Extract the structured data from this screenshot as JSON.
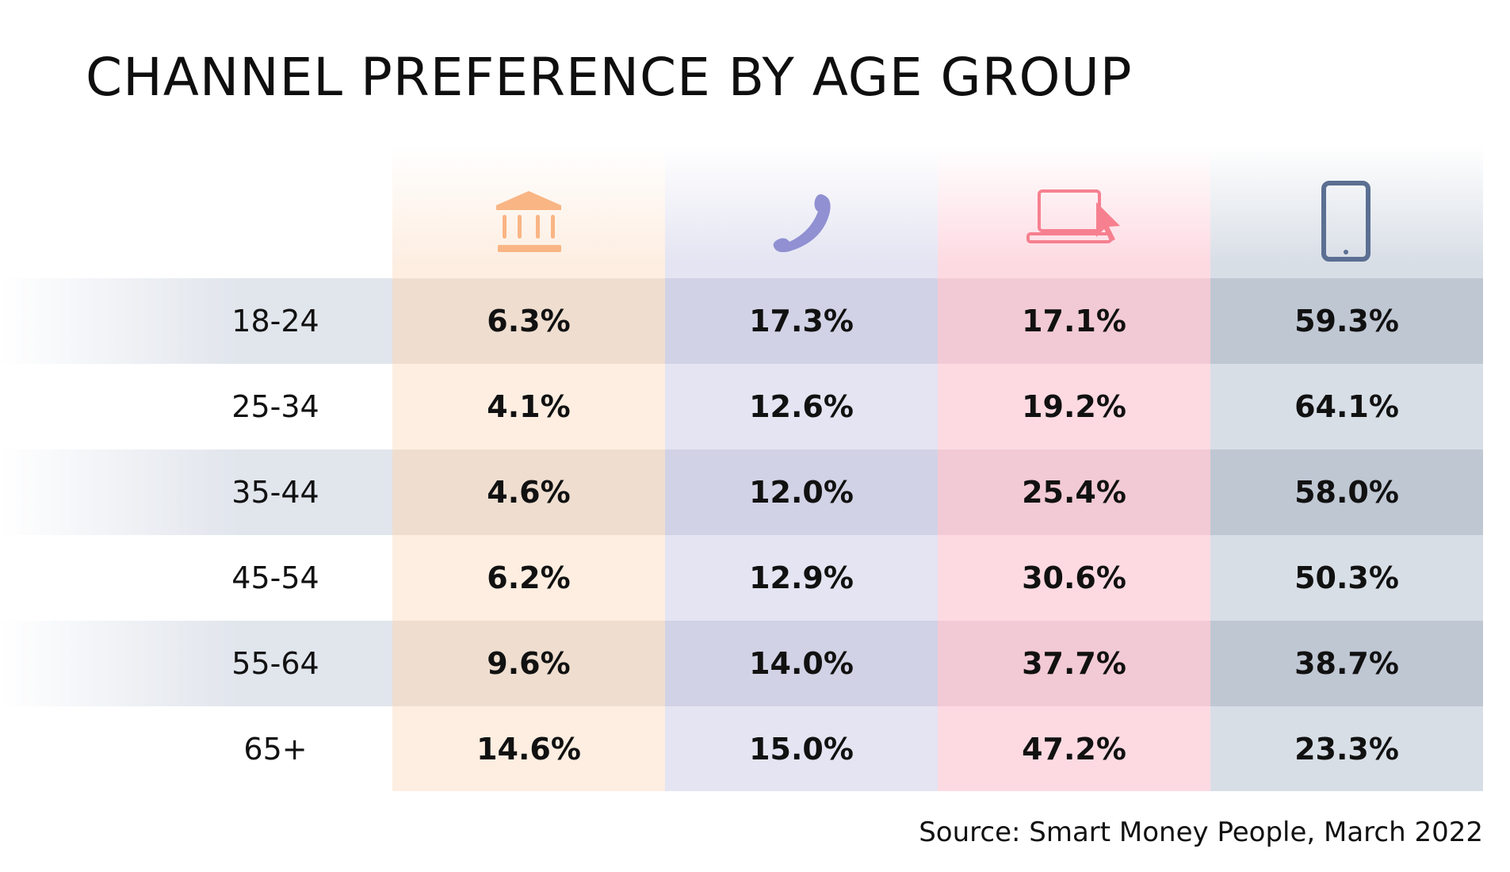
{
  "title": "CHANNEL PREFERENCE BY AGE GROUP",
  "source": "Source: Smart Money People, March 2022",
  "channels": [
    {
      "icon": "bank-icon",
      "color": "#f9b584"
    },
    {
      "icon": "phone-icon",
      "color": "#9090d2"
    },
    {
      "icon": "laptop-cursor-icon",
      "color": "#f6808f"
    },
    {
      "icon": "mobile-icon",
      "color": "#5b6f92"
    }
  ],
  "chart_data": {
    "type": "table",
    "columns": [
      "bank",
      "phone",
      "laptop",
      "mobile"
    ],
    "rows": [
      {
        "label": "18-24",
        "values": [
          "6.3%",
          "17.3%",
          "17.1%",
          "59.3%"
        ]
      },
      {
        "label": "25-34",
        "values": [
          "4.1%",
          "12.6%",
          "19.2%",
          "64.1%"
        ]
      },
      {
        "label": "35-44",
        "values": [
          "4.6%",
          "12.0%",
          "25.4%",
          "58.0%"
        ]
      },
      {
        "label": "45-54",
        "values": [
          "6.2%",
          "12.9%",
          "30.6%",
          "50.3%"
        ]
      },
      {
        "label": "55-64",
        "values": [
          "9.6%",
          "14.0%",
          "37.7%",
          "38.7%"
        ]
      },
      {
        "label": "65+",
        "values": [
          "14.6%",
          "15.0%",
          "47.2%",
          "23.3%"
        ]
      }
    ]
  }
}
